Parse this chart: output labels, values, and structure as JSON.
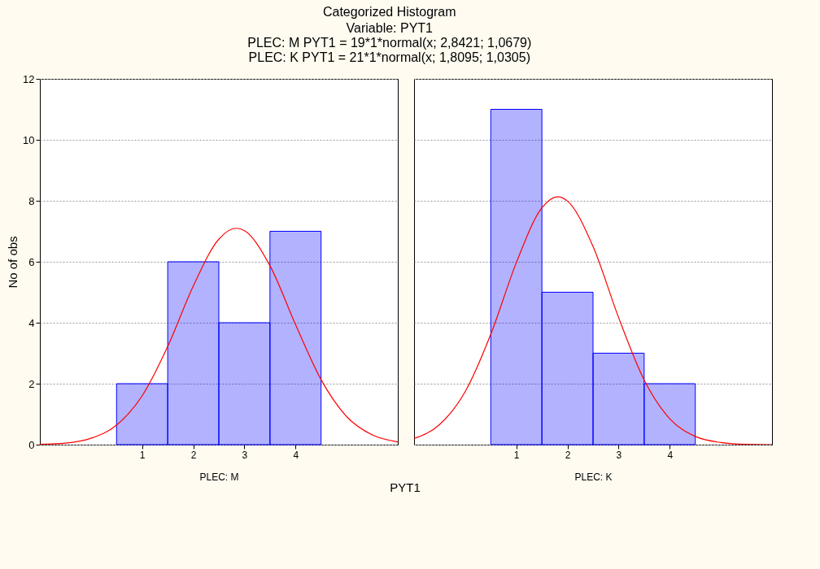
{
  "chart_data": [
    {
      "type": "histogram",
      "title": "Categorized Histogram",
      "subtitle": "Variable: PYT1",
      "annotations": [
        "PLEC: M PYT1 = 19*1*normal(x; 2,8421; 1,0679)",
        "PLEC: K PYT1 = 21*1*normal(x; 1,8095; 1,0305)",
        "PYT1"
      ],
      "xlabel": "PLEC: M",
      "ylabel": "No of obs",
      "bins": [
        0.5,
        1.5,
        2.5,
        3.5,
        4.5
      ],
      "values": [
        2,
        6,
        4,
        7
      ],
      "color": "#0000ff",
      "xlim": [
        -1,
        6
      ],
      "xticks": [
        1,
        2,
        3,
        4
      ],
      "ylim": [
        0,
        12
      ],
      "yticks": [
        0,
        2,
        4,
        6,
        8,
        10,
        12
      ],
      "grid": "y",
      "series": [
        {
          "type": "line",
          "color": "#ff0000",
          "x": [
            -1,
            -0.5,
            0,
            0.5,
            1,
            1.5,
            2,
            2.5,
            2.84,
            3,
            3.5,
            4,
            4.5,
            5,
            5.5,
            6
          ],
          "values": [
            0.01,
            0.05,
            0.21,
            0.64,
            1.6,
            3.22,
            5.2,
            6.74,
            7.1,
            7.02,
            5.87,
            3.94,
            2.13,
            0.92,
            0.32,
            0.09
          ]
        }
      ]
    },
    {
      "type": "histogram",
      "xlabel": "PLEC: K",
      "bins": [
        0.5,
        1.5,
        2.5,
        3.5,
        4.5
      ],
      "values": [
        11,
        5,
        3,
        2
      ],
      "color": "#0000ff",
      "xlim": [
        -1,
        6
      ],
      "xticks": [
        1,
        2,
        3,
        4
      ],
      "ylim": [
        0,
        12
      ],
      "yticks": [
        0,
        2,
        4,
        6,
        8,
        10,
        12
      ],
      "grid": "y",
      "tick_labels": "x",
      "series": [
        {
          "type": "line",
          "color": "#ff0000",
          "x": [
            -1,
            -0.5,
            0,
            0.5,
            1,
            1.5,
            1.81,
            2,
            2.5,
            3,
            3.5,
            4,
            4.5,
            5,
            5.5,
            6
          ],
          "values": [
            0.2,
            0.66,
            1.74,
            3.62,
            5.97,
            7.77,
            8.13,
            7.99,
            6.5,
            4.17,
            2.12,
            0.85,
            0.27,
            0.07,
            0.01,
            0
          ]
        }
      ]
    }
  ]
}
